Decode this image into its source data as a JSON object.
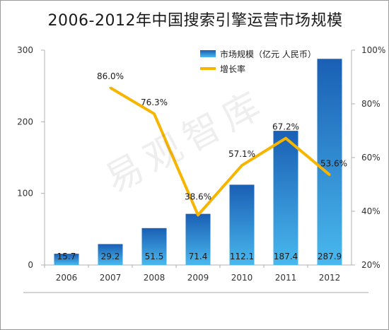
{
  "title": "2006-2012年中国搜索引擎运营市场规模",
  "watermark": "易观智库",
  "chart_data": {
    "type": "bar",
    "categories": [
      "2006",
      "2007",
      "2008",
      "2009",
      "2010",
      "2011",
      "2012"
    ],
    "series": [
      {
        "name": "市场规模（亿元 人民币）",
        "type": "bar",
        "axis": "left",
        "values": [
          15.7,
          29.2,
          51.5,
          71.4,
          112.1,
          187.4,
          287.9
        ],
        "labels": [
          "15.7",
          "29.2",
          "51.5",
          "71.4",
          "112.1",
          "187.4",
          "287.9"
        ],
        "color": "#1f6fc4"
      },
      {
        "name": "增长率",
        "type": "line",
        "axis": "right",
        "values": [
          null,
          86.0,
          76.3,
          38.6,
          57.1,
          67.2,
          53.6
        ],
        "labels": [
          "",
          "86.0%",
          "76.3%",
          "38.6%",
          "57.1%",
          "67.2%",
          "53.6%"
        ],
        "color": "#f7b500"
      }
    ],
    "ylim": [
      0,
      300
    ],
    "yticks": [
      "0",
      "100",
      "200",
      "300"
    ],
    "y2lim": [
      20,
      100
    ],
    "y2ticks": [
      "20%",
      "40%",
      "60%",
      "80%",
      "100%"
    ],
    "legend": "top-right",
    "grid": false
  }
}
